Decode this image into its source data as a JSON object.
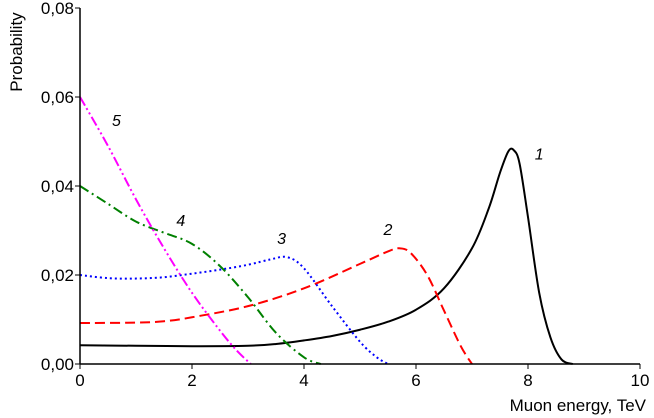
{
  "chart_data": {
    "type": "line",
    "title": "",
    "xlabel": "Muon energy, TeV",
    "ylabel": "Probability",
    "xlim": [
      0,
      10
    ],
    "ylim": [
      0,
      0.08
    ],
    "x_ticks": [
      0,
      2,
      4,
      6,
      8,
      10
    ],
    "x_tick_labels": [
      "0",
      "2",
      "4",
      "6",
      "8",
      "10"
    ],
    "y_ticks": [
      0,
      0.02,
      0.04,
      0.06,
      0.08
    ],
    "y_tick_labels": [
      "0,00",
      "0,02",
      "0,04",
      "0,06",
      "0,08"
    ],
    "grid": false,
    "legend": "none",
    "series": [
      {
        "name": "1",
        "color": "#000000",
        "dash": "solid",
        "label_at": [
          8.2,
          0.046
        ],
        "points": [
          [
            0,
            0.0042
          ],
          [
            1,
            0.0041
          ],
          [
            2,
            0.004
          ],
          [
            3,
            0.0041
          ],
          [
            3.5,
            0.0045
          ],
          [
            4,
            0.0053
          ],
          [
            4.5,
            0.0063
          ],
          [
            5,
            0.0077
          ],
          [
            5.5,
            0.0095
          ],
          [
            6,
            0.0122
          ],
          [
            6.5,
            0.017
          ],
          [
            7,
            0.026
          ],
          [
            7.3,
            0.035
          ],
          [
            7.5,
            0.043
          ],
          [
            7.65,
            0.0478
          ],
          [
            7.75,
            0.048
          ],
          [
            7.85,
            0.045
          ],
          [
            8,
            0.033
          ],
          [
            8.2,
            0.016
          ],
          [
            8.4,
            0.006
          ],
          [
            8.6,
            0.001
          ],
          [
            8.8,
            0.0
          ]
        ]
      },
      {
        "name": "2",
        "color": "#ff0000",
        "dash": "dashed",
        "label_at": [
          5.5,
          0.029
        ],
        "points": [
          [
            0,
            0.0092
          ],
          [
            1,
            0.0093
          ],
          [
            1.5,
            0.0096
          ],
          [
            2,
            0.0105
          ],
          [
            3,
            0.013
          ],
          [
            4,
            0.017
          ],
          [
            5,
            0.0225
          ],
          [
            5.5,
            0.0253
          ],
          [
            5.7,
            0.026
          ],
          [
            5.9,
            0.025
          ],
          [
            6.2,
            0.02
          ],
          [
            6.5,
            0.012
          ],
          [
            6.8,
            0.004
          ],
          [
            7,
            0.0
          ]
        ]
      },
      {
        "name": "3",
        "color": "#0000ff",
        "dash": "dotted",
        "label_at": [
          3.6,
          0.027
        ],
        "points": [
          [
            0,
            0.02
          ],
          [
            0.5,
            0.0193
          ],
          [
            1,
            0.0192
          ],
          [
            1.5,
            0.0195
          ],
          [
            2,
            0.0203
          ],
          [
            2.5,
            0.0212
          ],
          [
            3,
            0.0223
          ],
          [
            3.4,
            0.0235
          ],
          [
            3.7,
            0.024
          ],
          [
            4,
            0.0215
          ],
          [
            4.5,
            0.013
          ],
          [
            5,
            0.005
          ],
          [
            5.3,
            0.0015
          ],
          [
            5.5,
            0.0
          ]
        ]
      },
      {
        "name": "4",
        "color": "#008000",
        "dash": "dashdot",
        "label_at": [
          1.8,
          0.031
        ],
        "points": [
          [
            0,
            0.04
          ],
          [
            0.5,
            0.036
          ],
          [
            1,
            0.032
          ],
          [
            1.5,
            0.0295
          ],
          [
            2,
            0.027
          ],
          [
            2.5,
            0.022
          ],
          [
            3,
            0.015
          ],
          [
            3.5,
            0.007
          ],
          [
            4,
            0.0015
          ],
          [
            4.3,
            0.0
          ]
        ]
      },
      {
        "name": "5",
        "color": "#ff00ff",
        "dash": "dashdotdot",
        "label_at": [
          0.65,
          0.0535
        ],
        "points": [
          [
            0,
            0.06
          ],
          [
            0.5,
            0.049
          ],
          [
            1,
            0.037
          ],
          [
            1.5,
            0.026
          ],
          [
            2,
            0.016
          ],
          [
            2.5,
            0.0075
          ],
          [
            2.8,
            0.003
          ],
          [
            3.05,
            0.0
          ]
        ]
      }
    ]
  }
}
